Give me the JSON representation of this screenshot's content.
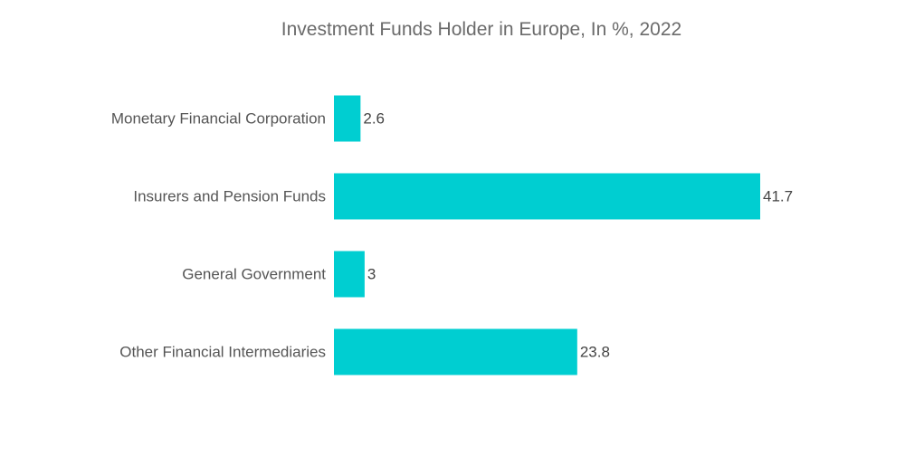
{
  "chart_data": {
    "type": "bar",
    "orientation": "horizontal",
    "title": "Investment Funds Holder in Europe, In %, 2022",
    "categories": [
      "Monetary Financial Corporation",
      "Insurers and Pension Funds",
      "General Government",
      "Other Financial Intermediaries"
    ],
    "values": [
      2.6,
      41.7,
      3,
      23.8
    ],
    "value_labels": [
      "2.6",
      "41.7",
      "3",
      "23.8"
    ],
    "xlim": [
      0,
      41.7
    ],
    "grid": false,
    "legend": "none",
    "bar_color": "#00ced1"
  }
}
